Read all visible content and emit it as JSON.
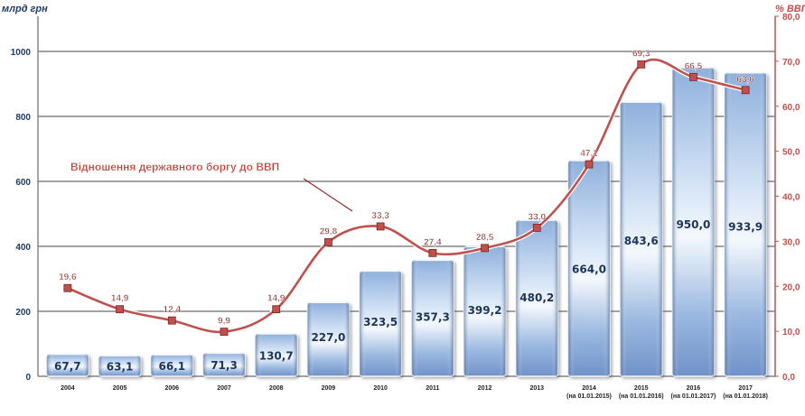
{
  "chart_data": {
    "type": "bar",
    "left_axis_title": "млрд грн",
    "right_axis_title": "% ВВП",
    "categories": [
      "2004",
      "2005",
      "2006",
      "2007",
      "2008",
      "2009",
      "2010",
      "2011",
      "2012",
      "2013",
      "2014 (на 01.01.2015)",
      "2015 (на 01.01.2016)",
      "2016 (на 01.01.2017)",
      "2017 (на 01.01.2018)"
    ],
    "series": [
      {
        "kind": "bar",
        "axis": "left",
        "values": [
          67.7,
          63.1,
          66.1,
          71.3,
          130.7,
          227.0,
          323.5,
          357.3,
          399.2,
          480.2,
          664.0,
          843.6,
          950.0,
          933.9
        ],
        "labels": [
          "67,7",
          "63,1",
          "66,1",
          "71,3",
          "130,7",
          "227,0",
          "323,5",
          "357,3",
          "399,2",
          "480,2",
          "664,0",
          "843,6",
          "950,0",
          "933,9"
        ]
      },
      {
        "kind": "line",
        "axis": "right",
        "name": "Відношення державного боргу до ВВП",
        "values": [
          19.6,
          14.9,
          12.4,
          9.9,
          14.9,
          29.8,
          33.3,
          27.4,
          28.5,
          33.0,
          47.1,
          69.3,
          66.5,
          63.6
        ],
        "labels": [
          "19,6",
          "14,9",
          "12,4",
          "9,9",
          "14,9",
          "29,8",
          "33,3",
          "27,4",
          "28,5",
          "33,0",
          "47,1",
          "69,3",
          "66,5",
          "63,6"
        ]
      }
    ],
    "left_axis": {
      "min": 0,
      "max": 1000,
      "ticks": [
        "0",
        "200",
        "400",
        "600",
        "800",
        "1000"
      ]
    },
    "right_axis": {
      "min": 0,
      "max": 80,
      "ticks": [
        "0,0",
        "10,0",
        "20,0",
        "30,0",
        "40,0",
        "50,0",
        "60,0",
        "70,0",
        "80,0"
      ]
    },
    "grid": true,
    "colors": {
      "bar": "#6f92c8",
      "bar_light": "#e8f0fb",
      "line": "#c0504d",
      "grid": "#6b6b6b",
      "right_axis": "#c0504d"
    }
  }
}
